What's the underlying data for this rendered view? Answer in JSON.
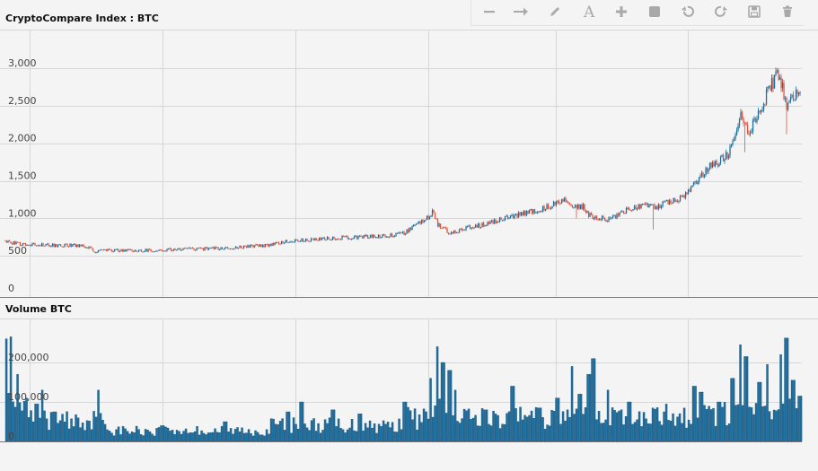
{
  "colors": {
    "up": "#1f6f9e",
    "down": "#e0533a",
    "volume": "#1f6f9e",
    "tool_icon": "#a9a9a9"
  },
  "toolbar": {
    "items": [
      {
        "name": "horizontal-line-icon"
      },
      {
        "name": "arrow-right-icon"
      },
      {
        "name": "pencil-icon"
      },
      {
        "name": "text-icon",
        "glyph": "A"
      },
      {
        "name": "plus-icon"
      },
      {
        "name": "square-icon"
      },
      {
        "name": "undo-icon"
      },
      {
        "name": "redo-icon"
      },
      {
        "name": "save-icon"
      },
      {
        "name": "trash-icon"
      }
    ]
  },
  "chart_data": [
    {
      "type": "candlestick",
      "title": "CryptoCompare Index : BTC",
      "y_ticks": [
        "3,000",
        "2,500",
        "2,000",
        "1,500",
        "1,000",
        "500",
        "0"
      ],
      "ylim": [
        0,
        3000
      ],
      "grid": true,
      "keypoints": [
        [
          0,
          700
        ],
        [
          20,
          660
        ],
        [
          40,
          650
        ],
        [
          60,
          640
        ],
        [
          80,
          640
        ],
        [
          90,
          640
        ],
        [
          100,
          610
        ],
        [
          105,
          560
        ],
        [
          120,
          575
        ],
        [
          140,
          570
        ],
        [
          160,
          570
        ],
        [
          180,
          575
        ],
        [
          200,
          590
        ],
        [
          220,
          590
        ],
        [
          240,
          600
        ],
        [
          260,
          610
        ],
        [
          280,
          630
        ],
        [
          300,
          640
        ],
        [
          320,
          700
        ],
        [
          340,
          710
        ],
        [
          360,
          730
        ],
        [
          380,
          740
        ],
        [
          400,
          750
        ],
        [
          420,
          760
        ],
        [
          440,
          780
        ],
        [
          450,
          800
        ],
        [
          460,
          880
        ],
        [
          470,
          960
        ],
        [
          478,
          1030
        ],
        [
          483,
          1100
        ],
        [
          487,
          920
        ],
        [
          495,
          860
        ],
        [
          500,
          800
        ],
        [
          505,
          810
        ],
        [
          520,
          880
        ],
        [
          540,
          920
        ],
        [
          560,
          1000
        ],
        [
          570,
          1020
        ],
        [
          580,
          1060
        ],
        [
          600,
          1110
        ],
        [
          620,
          1200
        ],
        [
          630,
          1260
        ],
        [
          640,
          1150
        ],
        [
          650,
          1160
        ],
        [
          655,
          1050
        ],
        [
          660,
          1020
        ],
        [
          680,
          980
        ],
        [
          690,
          1060
        ],
        [
          700,
          1130
        ],
        [
          710,
          1160
        ],
        [
          720,
          1180
        ],
        [
          730,
          1140
        ],
        [
          740,
          1200
        ],
        [
          750,
          1240
        ],
        [
          760,
          1280
        ],
        [
          770,
          1400
        ],
        [
          780,
          1550
        ],
        [
          790,
          1700
        ],
        [
          800,
          1750
        ],
        [
          810,
          1850
        ],
        [
          815,
          1950
        ],
        [
          820,
          2100
        ],
        [
          826,
          2400
        ],
        [
          830,
          2200
        ],
        [
          835,
          2150
        ],
        [
          840,
          2280
        ],
        [
          850,
          2550
        ],
        [
          860,
          2800
        ],
        [
          868,
          2950
        ],
        [
          872,
          2700
        ],
        [
          876,
          2480
        ],
        [
          882,
          2580
        ],
        [
          888,
          2700
        ],
        [
          891,
          2750
        ]
      ],
      "down_spikes": [
        [
          728,
          850
        ],
        [
          642,
          1000
        ],
        [
          830,
          1880
        ],
        [
          876,
          2120
        ]
      ],
      "up_spikes": [
        [
          826,
          2800
        ],
        [
          181,
          700
        ],
        [
          108,
          520
        ]
      ]
    },
    {
      "type": "bar",
      "title": "Volume BTC",
      "y_ticks": [
        "200,000",
        "100,000",
        "0"
      ],
      "ylim": [
        0,
        265000
      ],
      "grid": true,
      "peaks": [
        [
          5,
          260000
        ],
        [
          11,
          265000
        ],
        [
          18,
          170000
        ],
        [
          28,
          110000
        ],
        [
          40,
          95000
        ],
        [
          46,
          130000
        ],
        [
          60,
          75000
        ],
        [
          108,
          130000
        ],
        [
          180,
          40000
        ],
        [
          250,
          50000
        ],
        [
          320,
          75000
        ],
        [
          335,
          100000
        ],
        [
          370,
          80000
        ],
        [
          400,
          70000
        ],
        [
          450,
          100000
        ],
        [
          478,
          160000
        ],
        [
          486,
          240000
        ],
        [
          492,
          200000
        ],
        [
          500,
          180000
        ],
        [
          506,
          130000
        ],
        [
          540,
          80000
        ],
        [
          570,
          140000
        ],
        [
          600,
          85000
        ],
        [
          620,
          110000
        ],
        [
          636,
          190000
        ],
        [
          645,
          120000
        ],
        [
          655,
          170000
        ],
        [
          660,
          210000
        ],
        [
          676,
          130000
        ],
        [
          700,
          100000
        ],
        [
          740,
          75000
        ],
        [
          772,
          140000
        ],
        [
          780,
          125000
        ],
        [
          800,
          100000
        ],
        [
          815,
          160000
        ],
        [
          824,
          245000
        ],
        [
          830,
          215000
        ],
        [
          845,
          150000
        ],
        [
          853,
          195000
        ],
        [
          868,
          220000
        ],
        [
          875,
          262000
        ],
        [
          882,
          155000
        ],
        [
          890,
          115000
        ]
      ]
    }
  ]
}
